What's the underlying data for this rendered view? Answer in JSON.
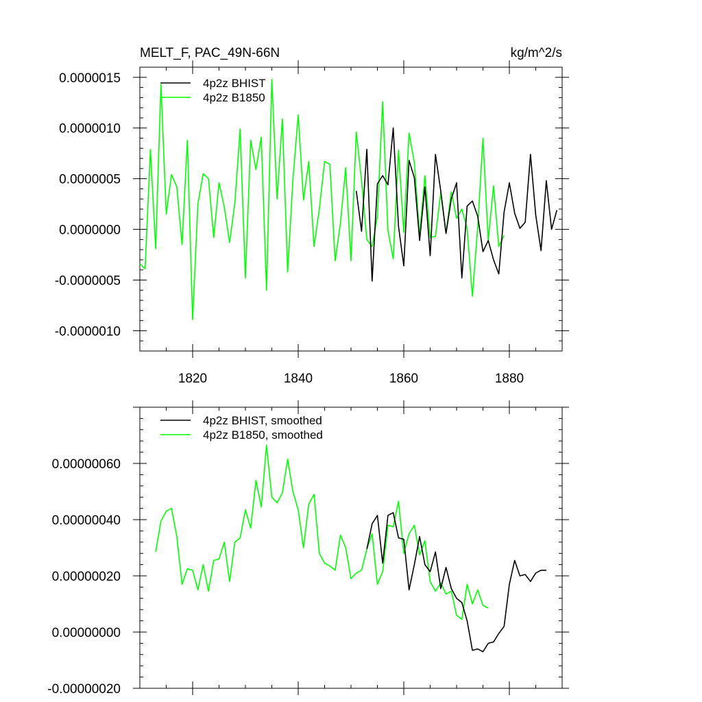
{
  "chart_data": [
    {
      "type": "line",
      "title": "MELT_F, PAC_49N-66N",
      "units": "kg/m^2/s",
      "xlim": [
        1810,
        1890
      ],
      "ylim": [
        -1.2e-06,
        1.6e-06
      ],
      "xticks": [
        1820,
        1840,
        1860,
        1880
      ],
      "xtick_labels": [
        "1820",
        "1840",
        "1860",
        "1880"
      ],
      "yticks": [
        -1e-06,
        -5e-07,
        0,
        5e-07,
        1e-06,
        1.5e-06
      ],
      "ytick_labels": [
        "-0.0000010",
        "-0.0000005",
        "0.0000000",
        "0.0000005",
        "0.0000010",
        "0.0000015"
      ],
      "legend_position": "top-left",
      "series": [
        {
          "name": "4p2z BHIST",
          "color": "#000000",
          "x": [
            1851,
            1852,
            1853,
            1854,
            1855,
            1856,
            1857,
            1858,
            1859,
            1860,
            1861,
            1862,
            1863,
            1864,
            1865,
            1866,
            1867,
            1868,
            1869,
            1870,
            1871,
            1872,
            1873,
            1874,
            1875,
            1876,
            1877,
            1878,
            1879,
            1880,
            1881,
            1882,
            1883,
            1884,
            1885,
            1886,
            1887,
            1888,
            1889
          ],
          "values": [
            3.8e-07,
            -2e-08,
            7.9e-07,
            -5.1e-07,
            4.5e-07,
            5.3e-07,
            4.4e-07,
            1e-06,
            3e-08,
            -3.6e-07,
            6.8e-07,
            5.1e-07,
            -1.1e-07,
            4.2e-07,
            -2.6e-07,
            7.4e-07,
            3.8e-07,
            -4e-08,
            3e-07,
            4.6e-07,
            -4.8e-07,
            2.3e-07,
            2.8e-07,
            1.3e-07,
            -2.2e-07,
            -1.1e-07,
            -3e-07,
            -4.4e-07,
            1.7e-07,
            4.6e-07,
            1.6e-07,
            1e-08,
            7e-08,
            7.4e-07,
            1.4e-07,
            -2.1e-07,
            4.8e-07,
            0.0,
            1.9e-07
          ]
        },
        {
          "name": "4p2z B1850",
          "color": "#00ff00",
          "x": [
            1810,
            1811,
            1812,
            1813,
            1814,
            1815,
            1816,
            1817,
            1818,
            1819,
            1820,
            1821,
            1822,
            1823,
            1824,
            1825,
            1826,
            1827,
            1828,
            1829,
            1830,
            1831,
            1832,
            1833,
            1834,
            1835,
            1836,
            1837,
            1838,
            1839,
            1840,
            1841,
            1842,
            1843,
            1844,
            1845,
            1846,
            1847,
            1848,
            1849,
            1850,
            1851,
            1852,
            1853,
            1854,
            1855,
            1856,
            1857,
            1858,
            1859,
            1860,
            1861,
            1862,
            1863,
            1864,
            1865,
            1866,
            1867,
            1868,
            1869,
            1870,
            1871,
            1872,
            1873,
            1874,
            1875,
            1876,
            1877,
            1878,
            1879
          ],
          "values": [
            -3.4e-07,
            -3.9e-07,
            7.9e-07,
            -1.9e-07,
            1.43e-06,
            1.5e-07,
            5.4e-07,
            4.2e-07,
            -1.5e-07,
            8.8e-07,
            -8.9e-07,
            2.5e-07,
            5.5e-07,
            5e-07,
            -8e-08,
            4.6e-07,
            2.2e-07,
            -1.3e-07,
            2.6e-07,
            9.9e-07,
            -4.8e-07,
            8.8e-07,
            5.9e-07,
            9.1e-07,
            -6e-07,
            1.48e-06,
            3e-07,
            1.09e-06,
            -4.2e-07,
            4.9e-07,
            1.13e-06,
            2.9e-07,
            6.7e-07,
            -1.7e-07,
            2e-07,
            6.7e-07,
            6.4e-07,
            -3.1e-07,
            6e-08,
            6.1e-07,
            -3.1e-07,
            9.6e-07,
            4.8e-07,
            -1e-07,
            -1.7e-07,
            1.3e-07,
            1.26e-06,
            -1e-08,
            -2.9e-07,
            7.8e-07,
            -3e-08,
            9.5e-07,
            6.6e-07,
            -6e-08,
            5.3e-07,
            -8e-08,
            -7e-08,
            3.6e-07,
            -4e-08,
            3.7e-07,
            1.1e-07,
            2e-07,
            1e-08,
            -6.6e-07,
            2e-08,
            9e-07,
            -1.1e-07,
            4.3e-07,
            -1.7e-07,
            -6e-08
          ]
        }
      ]
    },
    {
      "type": "line",
      "xlim": [
        1810,
        1890
      ],
      "ylim": [
        -2e-07,
        8e-07
      ],
      "xticks": [
        1820,
        1840,
        1860,
        1880
      ],
      "xtick_labels": [],
      "yticks": [
        -2e-07,
        0,
        2e-07,
        4e-07,
        6e-07
      ],
      "ytick_labels": [
        "-0.00000020",
        "0.00000000",
        "0.00000020",
        "0.00000040",
        "0.00000060"
      ],
      "legend_position": "top-left",
      "series": [
        {
          "name": "4p2z BHIST, smoothed",
          "color": "#000000",
          "x": [
            1853,
            1854,
            1855,
            1856,
            1857,
            1858,
            1859,
            1860,
            1861,
            1862,
            1863,
            1864,
            1865,
            1866,
            1867,
            1868,
            1869,
            1870,
            1871,
            1872,
            1873,
            1874,
            1875,
            1876,
            1877,
            1878,
            1879,
            1880,
            1881,
            1882,
            1883,
            1884,
            1885,
            1886,
            1887
          ],
          "values": [
            2.95e-07,
            3.85e-07,
            4.15e-07,
            2.45e-07,
            4.15e-07,
            4.25e-07,
            3.35e-07,
            3.3e-07,
            1.5e-07,
            2.4e-07,
            3.4e-07,
            2.4e-07,
            2.15e-07,
            2.85e-07,
            1.55e-07,
            2.3e-07,
            1.55e-07,
            1.2e-07,
            1.05e-07,
            4e-08,
            -6.5e-08,
            -6e-08,
            -7e-08,
            -4e-08,
            -3.5e-08,
            -5e-09,
            2e-08,
            1.7e-07,
            2.55e-07,
            2e-07,
            2.05e-07,
            1.8e-07,
            2.1e-07,
            2.2e-07,
            2.2e-07
          ]
        },
        {
          "name": "4p2z B1850, smoothed",
          "color": "#00ff00",
          "x": [
            1813,
            1814,
            1815,
            1816,
            1817,
            1818,
            1819,
            1820,
            1821,
            1822,
            1823,
            1824,
            1825,
            1826,
            1827,
            1828,
            1829,
            1830,
            1831,
            1832,
            1833,
            1834,
            1835,
            1836,
            1837,
            1838,
            1839,
            1840,
            1841,
            1842,
            1843,
            1844,
            1845,
            1846,
            1847,
            1848,
            1849,
            1850,
            1851,
            1852,
            1853,
            1854,
            1855,
            1856,
            1857,
            1858,
            1859,
            1860,
            1861,
            1862,
            1863,
            1864,
            1865,
            1866,
            1867,
            1868,
            1869,
            1870,
            1871,
            1872,
            1873,
            1874,
            1875,
            1876
          ],
          "values": [
            2.85e-07,
            3.95e-07,
            4.3e-07,
            4.4e-07,
            3.4e-07,
            1.7e-07,
            2.25e-07,
            2.2e-07,
            1.5e-07,
            2.4e-07,
            1.45e-07,
            2.55e-07,
            2.6e-07,
            3.2e-07,
            1.8e-07,
            3.2e-07,
            3.35e-07,
            4.35e-07,
            3.7e-07,
            5.4e-07,
            4.45e-07,
            6.65e-07,
            4.8e-07,
            4.6e-07,
            4.95e-07,
            6.15e-07,
            5e-07,
            4.35e-07,
            3e-07,
            4.55e-07,
            4.9e-07,
            2.8e-07,
            2.45e-07,
            2.35e-07,
            2.2e-07,
            3.45e-07,
            3e-07,
            1.9e-07,
            2.1e-07,
            2.2e-07,
            2.95e-07,
            3.5e-07,
            1.7e-07,
            2.15e-07,
            3.8e-07,
            3.75e-07,
            4.65e-07,
            2.8e-07,
            3.5e-07,
            3.8e-07,
            2.75e-07,
            3.25e-07,
            1.8e-07,
            1.45e-07,
            1.75e-07,
            1.35e-07,
            1.45e-07,
            6e-08,
            4.5e-08,
            1.7e-07,
            1e-07,
            1.5e-07,
            9.5e-08,
            8.5e-08
          ]
        }
      ]
    }
  ]
}
